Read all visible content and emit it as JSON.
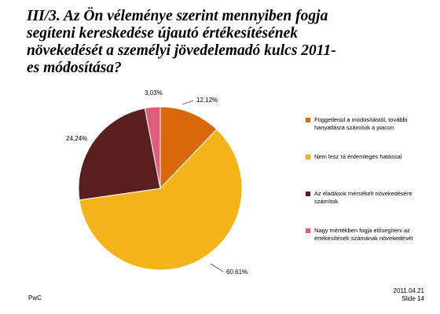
{
  "slide": {
    "title": "III/3. Az Ön véleménye szerint mennyiben fogja\nsegíteni kereskedése újautó értékesítésének\nnövekedését a személyi jövedelemadó kulcs 2011-\nes módosítása?",
    "brand": "PwC",
    "date": "2011.04.21",
    "slide_number": "Slide 14"
  },
  "chart_data": {
    "type": "pie",
    "categories": [
      "Függetlenül a módosítástól, további hanyatlásra számítok a piacon",
      "Nem lesz rá érdemleges hatással",
      "Az eladások mérsékelt növekedésére számítok",
      "Nagy mértékben fogja elősegíteni az értékesítések számának növekedését"
    ],
    "legend_lines": [
      [
        "Függetlenül a módosítástól, további",
        "hanyatlásra számítok a piacon"
      ],
      [
        "Nem lesz rá érdemleges hatással"
      ],
      [
        "Az eladások mérsékelt növekedésére",
        "számítok"
      ],
      [
        "Nagy mértékben fogja elősegíteni az",
        "értékesítések számának növekedését"
      ]
    ],
    "values": [
      12.12,
      60.61,
      24.24,
      3.03
    ],
    "data_labels": [
      "12,12%",
      "60,61%",
      "24,24%",
      "3,03%"
    ],
    "colors": [
      "#D9680B",
      "#F5B31A",
      "#5A1E1E",
      "#DB5F7A"
    ],
    "start_angle_deg": 0,
    "direction": "clockwise",
    "legend_position": "right"
  }
}
